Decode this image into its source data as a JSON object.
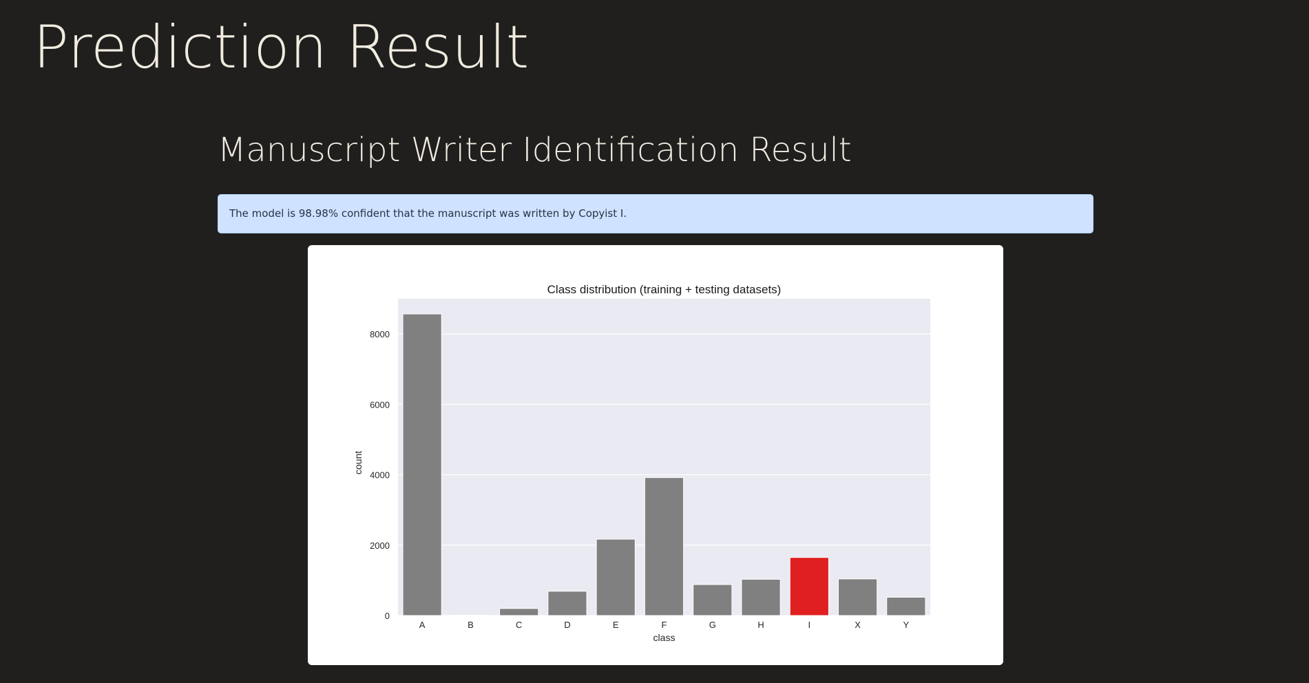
{
  "page": {
    "title": "Prediction Result",
    "section_title": "Manuscript Writer Identification Result",
    "alert_text": "The model is 98.98% confident that the manuscript was written by Copyist I."
  },
  "colors": {
    "background": "#201f1e",
    "alert_bg": "#cfe2ff",
    "bar_default": "#808080",
    "bar_highlight": "#e02020",
    "plot_bg": "#eaeaf2"
  },
  "chart_data": {
    "type": "bar",
    "title": "Class distribution (training + testing datasets)",
    "xlabel": "class",
    "ylabel": "count",
    "categories": [
      "A",
      "B",
      "C",
      "D",
      "E",
      "F",
      "G",
      "H",
      "I",
      "X",
      "Y"
    ],
    "values": [
      8570,
      10,
      200,
      690,
      2170,
      3920,
      880,
      1030,
      1650,
      1040,
      520
    ],
    "highlight_category": "I",
    "yticks": [
      0,
      2000,
      4000,
      6000,
      8000
    ],
    "ylim": [
      0,
      9000
    ],
    "grid": true
  }
}
